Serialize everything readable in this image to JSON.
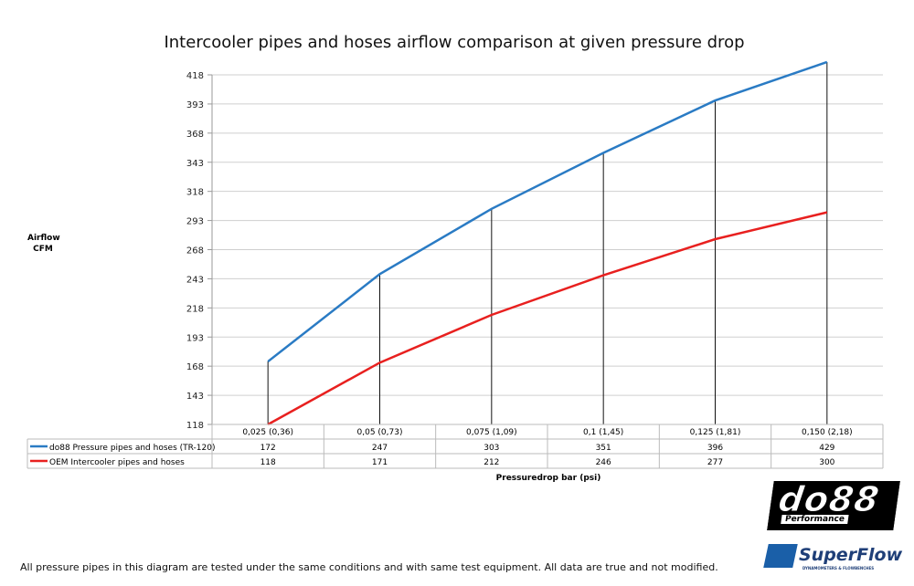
{
  "chart_data": {
    "type": "line",
    "title": "Intercooler pipes and hoses airflow comparison at given pressure drop",
    "ylabel_line1": "Airflow",
    "ylabel_line2": "CFM",
    "xlabel": "Pressuredrop bar (psi)",
    "categories": [
      "0,025 (0,36)",
      "0,05 (0,73)",
      "0,075 (1,09)",
      "0,1 (1,45)",
      "0,125 (1,81)",
      "0,150 (2,18)"
    ],
    "yticks": [
      "118",
      "143",
      "168",
      "193",
      "218",
      "243",
      "268",
      "293",
      "318",
      "343",
      "368",
      "393",
      "418"
    ],
    "ylim": [
      118,
      418
    ],
    "grid": true,
    "legend": "data-table-below",
    "series": [
      {
        "name": "do88 Pressure pipes and hoses (TR-120)",
        "color": "#2a7bc4",
        "values": [
          172,
          247,
          303,
          351,
          396,
          429
        ]
      },
      {
        "name": "OEM Intercooler pipes and hoses",
        "color": "#e8201f",
        "values": [
          118,
          171,
          212,
          246,
          277,
          300
        ]
      }
    ]
  },
  "footer": "All pressure pipes in this diagram are tested under the same conditions and with same test equipment. All data are true and not modified.",
  "logos": {
    "do88": "do88",
    "do88_sub": "Performance",
    "superflow": "SuperFlow",
    "superflow_tag": "DYNAMOMETERS & FLOWBENCHES"
  }
}
